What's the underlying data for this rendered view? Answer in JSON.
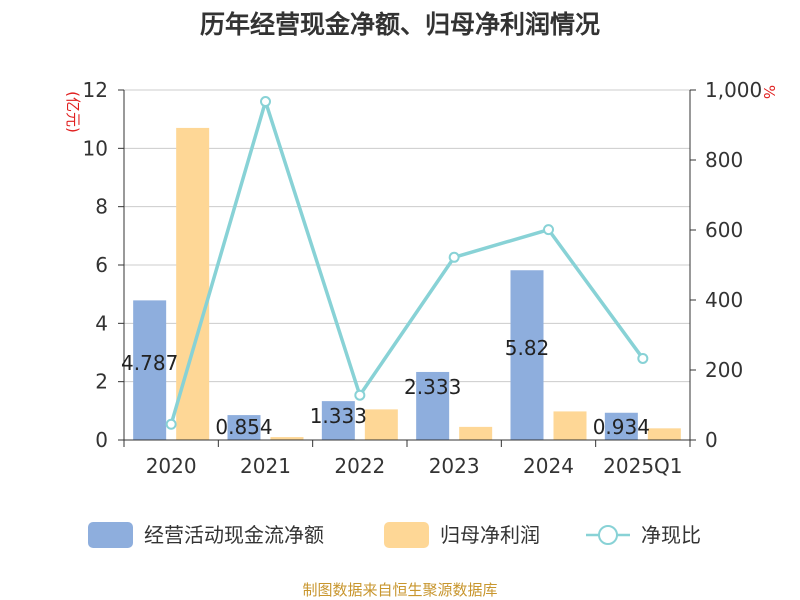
{
  "chart_data": {
    "type": "bar",
    "title": "历年经营现金净额、归母净利润情况",
    "categories": [
      "2020",
      "2021",
      "2022",
      "2023",
      "2024",
      "2025Q1"
    ],
    "y_left": {
      "unit": "(亿元)",
      "min": 0,
      "max": 12,
      "ticks": [
        "0",
        "2",
        "4",
        "6",
        "8",
        "10",
        "12"
      ]
    },
    "y_right": {
      "unit": "%",
      "min": 0,
      "max": 1000,
      "ticks": [
        "0",
        "200",
        "400",
        "600",
        "800",
        "1,000"
      ]
    },
    "grid": true,
    "legend_position": "bottom",
    "series": [
      {
        "name": "经营活动现金流净额",
        "type": "bar",
        "axis": "left",
        "color": "#8eaedd",
        "values": [
          4.787,
          0.854,
          1.333,
          2.333,
          5.82,
          0.934
        ],
        "labels": [
          "4.787",
          "0.854",
          "1.333",
          "2.333",
          "5.82",
          "0.934"
        ]
      },
      {
        "name": "归母净利润",
        "type": "bar",
        "axis": "left",
        "color": "#fed796",
        "values": [
          10.7,
          0.1,
          1.05,
          0.45,
          0.98,
          0.4
        ]
      },
      {
        "name": "净现比",
        "type": "line",
        "axis": "right",
        "color": "#88d2d6",
        "values": [
          45,
          967,
          128,
          522,
          601,
          233
        ]
      }
    ]
  },
  "source": "制图数据来自恒生聚源数据库"
}
